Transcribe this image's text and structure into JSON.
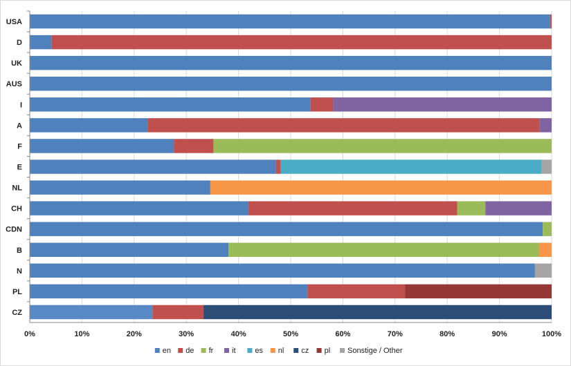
{
  "chart_data": {
    "type": "bar",
    "orientation": "horizontal",
    "stacked": true,
    "percent": true,
    "categories": [
      "USA",
      "D",
      "UK",
      "AUS",
      "I",
      "A",
      "F",
      "E",
      "NL",
      "CH",
      "CDN",
      "B",
      "N",
      "PL",
      "CZ"
    ],
    "series": [
      {
        "name": "en",
        "color": "#4F81BD",
        "values": [
          99.7,
          4.2,
          100,
          100,
          53.8,
          22.6,
          27.6,
          47.2,
          34.6,
          41.9,
          98.3,
          38.1,
          96.8,
          53.2,
          23.5
        ]
      },
      {
        "name": "de",
        "color": "#C0504D",
        "values": [
          0.3,
          95.8,
          0,
          0,
          4.3,
          75.1,
          7.6,
          0.9,
          0,
          40.0,
          0,
          0,
          0,
          18.7,
          9.8
        ]
      },
      {
        "name": "fr",
        "color": "#9BBB59",
        "values": [
          0,
          0,
          0,
          0,
          0,
          0,
          64.8,
          0,
          0,
          5.4,
          1.7,
          59.5,
          0,
          0,
          0
        ]
      },
      {
        "name": "it",
        "color": "#8064A2",
        "values": [
          0,
          0,
          0,
          0,
          41.9,
          2.3,
          0,
          0,
          0,
          12.7,
          0,
          0,
          0,
          0,
          0
        ]
      },
      {
        "name": "es",
        "color": "#4BACC6",
        "values": [
          0,
          0,
          0,
          0,
          0,
          0,
          0,
          50.0,
          0,
          0,
          0,
          0,
          0,
          0,
          0
        ]
      },
      {
        "name": "nl",
        "color": "#F79646",
        "values": [
          0,
          0,
          0,
          0,
          0,
          0,
          0,
          0,
          65.4,
          0,
          0,
          2.4,
          0,
          0,
          0
        ]
      },
      {
        "name": "cz",
        "color": "#2C4D75",
        "values": [
          0,
          0,
          0,
          0,
          0,
          0,
          0,
          0,
          0,
          0,
          0,
          0,
          0,
          0,
          66.7
        ]
      },
      {
        "name": "pl",
        "color": "#953735",
        "values": [
          0,
          0,
          0,
          0,
          0,
          0,
          0,
          0,
          0,
          0,
          0,
          0,
          0,
          28.1,
          0
        ]
      },
      {
        "name": "Sonstige / Other",
        "color": "#A5A5A5",
        "values": [
          0,
          0,
          0,
          0,
          0,
          0,
          0,
          1.9,
          0,
          0,
          0,
          0,
          3.2,
          0,
          0
        ]
      }
    ],
    "xlim": [
      0,
      100
    ],
    "x_ticks": [
      "0%",
      "10%",
      "20%",
      "30%",
      "40%",
      "50%",
      "60%",
      "70%",
      "80%",
      "90%",
      "100%"
    ],
    "grid": true,
    "legend_position": "bottom",
    "cz_bar_en_color": "#5A8AC6"
  }
}
